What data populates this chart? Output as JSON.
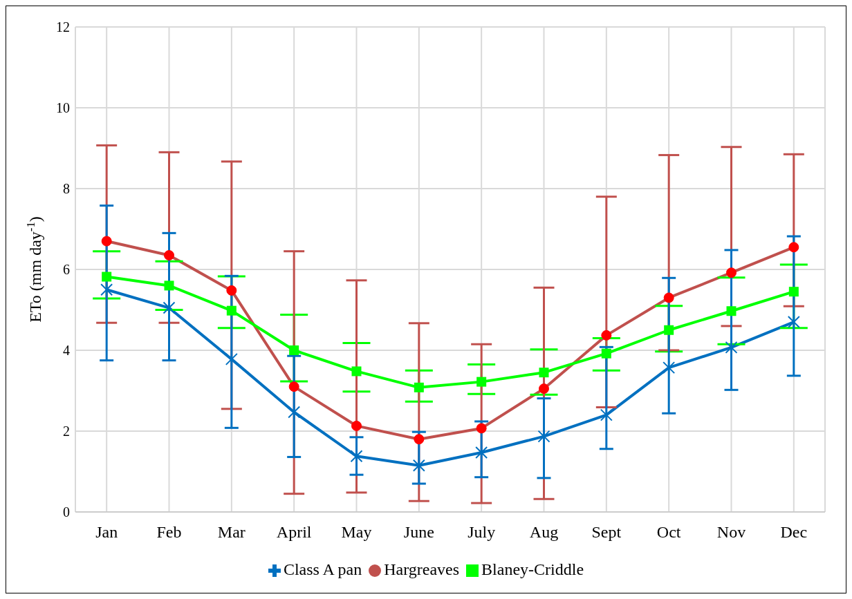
{
  "chart_data": {
    "type": "line",
    "ylabel": "ETo (mm day$^{-1}$)",
    "categories": [
      "Jan",
      "Feb",
      "Mar",
      "April",
      "May",
      "June",
      "July",
      "Aug",
      "Sept",
      "Oct",
      "Nov",
      "Dec"
    ],
    "ylim": [
      0,
      12
    ],
    "yticks": [
      0,
      2,
      4,
      6,
      8,
      10,
      12
    ],
    "grid": true,
    "legend": "bottom",
    "line_style": "solid",
    "series": [
      {
        "name": "Class A pan",
        "color": "#0070c0",
        "marker": "cross",
        "values": [
          5.5,
          5.05,
          3.78,
          2.47,
          1.38,
          1.15,
          1.47,
          1.87,
          2.4,
          3.57,
          4.07,
          4.7
        ],
        "errors": [
          [
            3.75,
            7.58
          ],
          [
            3.75,
            6.9
          ],
          [
            2.08,
            5.84
          ],
          [
            1.36,
            3.86
          ],
          [
            0.92,
            1.85
          ],
          [
            0.7,
            1.98
          ],
          [
            0.86,
            2.24
          ],
          [
            0.84,
            2.81
          ],
          [
            1.56,
            4.08
          ],
          [
            2.44,
            5.79
          ],
          [
            3.02,
            6.48
          ],
          [
            3.37,
            6.82
          ]
        ]
      },
      {
        "name": "Hargreaves",
        "color": "#c0504d",
        "marker": "circle",
        "values": [
          6.7,
          6.35,
          5.48,
          3.1,
          2.13,
          1.8,
          2.07,
          3.05,
          4.37,
          5.3,
          5.92,
          6.55
        ],
        "errors": [
          [
            4.68,
            9.07
          ],
          [
            4.68,
            8.9
          ],
          [
            2.55,
            8.67
          ],
          [
            0.45,
            6.45
          ],
          [
            0.48,
            5.73
          ],
          [
            0.27,
            4.67
          ],
          [
            0.22,
            4.15
          ],
          [
            0.32,
            5.55
          ],
          [
            2.59,
            7.8
          ],
          [
            4.0,
            8.83
          ],
          [
            4.6,
            9.03
          ],
          [
            5.09,
            8.85
          ]
        ]
      },
      {
        "name": "Blaney-Criddle",
        "color": "#00ff00",
        "marker": "square",
        "values": [
          5.82,
          5.6,
          4.98,
          4.0,
          3.48,
          3.08,
          3.22,
          3.45,
          3.92,
          4.5,
          4.97,
          5.45
        ],
        "errors": [
          [
            5.28,
            6.45
          ],
          [
            5.0,
            6.2
          ],
          [
            4.55,
            5.83
          ],
          [
            3.23,
            4.88
          ],
          [
            2.98,
            4.18
          ],
          [
            2.73,
            3.5
          ],
          [
            2.92,
            3.65
          ],
          [
            2.9,
            4.02
          ],
          [
            3.5,
            4.3
          ],
          [
            3.97,
            5.1
          ],
          [
            4.15,
            5.8
          ],
          [
            4.55,
            6.12
          ]
        ]
      }
    ]
  }
}
